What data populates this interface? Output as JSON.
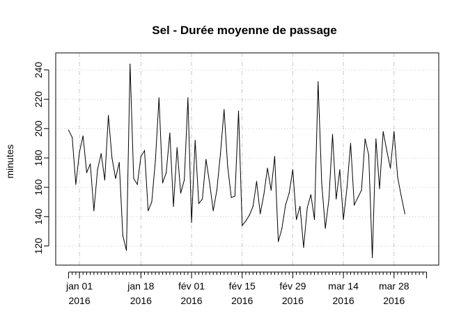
{
  "chart_data": {
    "type": "line",
    "title": "Sel - Durée moyenne de passage",
    "xlabel": "",
    "ylabel": "minutes",
    "ylim": [
      110,
      245
    ],
    "y_ticks": [
      120,
      140,
      160,
      180,
      200,
      220,
      240
    ],
    "x_start_date": "2015-12-29",
    "x_end_date": "2016-04-06",
    "x_tick_labels": [
      {
        "date": "2016-01-01",
        "line1": "jan 01",
        "line2": "2016"
      },
      {
        "date": "2016-01-18",
        "line1": "jan 18",
        "line2": "2016"
      },
      {
        "date": "2016-02-01",
        "line1": "fév 01",
        "line2": "2016"
      },
      {
        "date": "2016-02-15",
        "line1": "fév 15",
        "line2": "2016"
      },
      {
        "date": "2016-02-29",
        "line1": "fév 29",
        "line2": "2016"
      },
      {
        "date": "2016-03-14",
        "line1": "mar 14",
        "line2": "2016"
      },
      {
        "date": "2016-03-28",
        "line1": "mar 28",
        "line2": "2016"
      }
    ],
    "grid": true,
    "series": [
      {
        "values": [
          [
            "2015-12-29",
            199
          ],
          [
            "2015-12-30",
            194
          ],
          [
            "2015-12-31",
            162
          ],
          [
            "2016-01-01",
            184
          ],
          [
            "2016-01-02",
            195
          ],
          [
            "2016-01-03",
            170
          ],
          [
            "2016-01-04",
            176
          ],
          [
            "2016-01-05",
            144
          ],
          [
            "2016-01-06",
            172
          ],
          [
            "2016-01-07",
            183
          ],
          [
            "2016-01-08",
            165
          ],
          [
            "2016-01-09",
            209
          ],
          [
            "2016-01-10",
            180
          ],
          [
            "2016-01-11",
            166
          ],
          [
            "2016-01-12",
            177
          ],
          [
            "2016-01-13",
            127
          ],
          [
            "2016-01-14",
            117
          ],
          [
            "2016-01-15",
            244
          ],
          [
            "2016-01-16",
            166
          ],
          [
            "2016-01-17",
            162
          ],
          [
            "2016-01-18",
            181
          ],
          [
            "2016-01-19",
            185
          ],
          [
            "2016-01-20",
            144
          ],
          [
            "2016-01-21",
            150
          ],
          [
            "2016-01-22",
            178
          ],
          [
            "2016-01-23",
            221
          ],
          [
            "2016-01-24",
            163
          ],
          [
            "2016-01-25",
            170
          ],
          [
            "2016-01-26",
            197
          ],
          [
            "2016-01-27",
            147
          ],
          [
            "2016-01-28",
            187
          ],
          [
            "2016-01-29",
            156
          ],
          [
            "2016-01-30",
            165
          ],
          [
            "2016-01-31",
            221
          ],
          [
            "2016-02-01",
            136
          ],
          [
            "2016-02-02",
            192
          ],
          [
            "2016-02-03",
            149
          ],
          [
            "2016-02-04",
            152
          ],
          [
            "2016-02-05",
            179
          ],
          [
            "2016-02-06",
            163
          ],
          [
            "2016-02-07",
            144
          ],
          [
            "2016-02-08",
            158
          ],
          [
            "2016-02-09",
            183
          ],
          [
            "2016-02-10",
            213
          ],
          [
            "2016-02-11",
            174
          ],
          [
            "2016-02-12",
            153
          ],
          [
            "2016-02-13",
            154
          ],
          [
            "2016-02-14",
            212
          ],
          [
            "2016-02-15",
            134
          ],
          [
            "2016-02-16",
            137
          ],
          [
            "2016-02-17",
            141
          ],
          [
            "2016-02-18",
            147
          ],
          [
            "2016-02-19",
            164
          ],
          [
            "2016-02-20",
            142
          ],
          [
            "2016-02-21",
            155
          ],
          [
            "2016-02-22",
            173
          ],
          [
            "2016-02-23",
            158
          ],
          [
            "2016-02-24",
            181
          ],
          [
            "2016-02-25",
            123
          ],
          [
            "2016-02-26",
            132
          ],
          [
            "2016-02-27",
            148
          ],
          [
            "2016-02-28",
            156
          ],
          [
            "2016-02-29",
            172
          ],
          [
            "2016-03-01",
            138
          ],
          [
            "2016-03-02",
            147
          ],
          [
            "2016-03-03",
            119
          ],
          [
            "2016-03-04",
            146
          ],
          [
            "2016-03-05",
            155
          ],
          [
            "2016-03-06",
            138
          ],
          [
            "2016-03-07",
            232
          ],
          [
            "2016-03-08",
            163
          ],
          [
            "2016-03-09",
            132
          ],
          [
            "2016-03-10",
            152
          ],
          [
            "2016-03-11",
            196
          ],
          [
            "2016-03-12",
            152
          ],
          [
            "2016-03-13",
            172
          ],
          [
            "2016-03-14",
            138
          ],
          [
            "2016-03-15",
            160
          ],
          [
            "2016-03-16",
            190
          ],
          [
            "2016-03-17",
            148
          ],
          [
            "2016-03-18",
            153
          ],
          [
            "2016-03-19",
            158
          ],
          [
            "2016-03-20",
            193
          ],
          [
            "2016-03-21",
            182
          ],
          [
            "2016-03-22",
            112
          ],
          [
            "2016-03-23",
            193
          ],
          [
            "2016-03-24",
            159
          ],
          [
            "2016-03-25",
            198
          ],
          [
            "2016-03-26",
            185
          ],
          [
            "2016-03-27",
            173
          ],
          [
            "2016-03-28",
            198
          ],
          [
            "2016-03-29",
            167
          ],
          [
            "2016-03-30",
            154
          ],
          [
            "2016-03-31",
            142
          ]
        ]
      }
    ]
  }
}
